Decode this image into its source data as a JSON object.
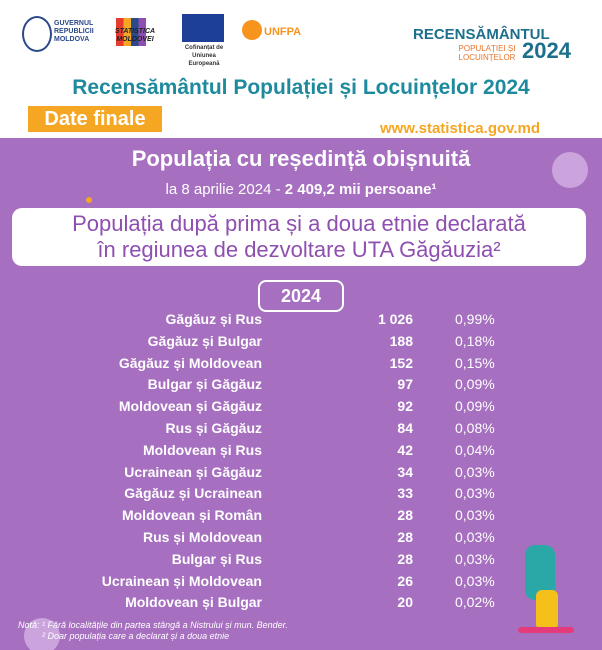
{
  "header": {
    "logos": [
      "GUVERNUL REPUBLICII MOLDOVA",
      "STATISTICA MOLDOVEI",
      "Cofinanțat de Uniunea Europeană",
      "UNFPA"
    ],
    "census_logo": {
      "title": "RECENSĂMÂNTUL",
      "subtitle": "POPULAȚIEI ȘI LOCUINȚELOR",
      "year": "2024"
    },
    "title": "Recensământul Populației și Locuințelor 2024",
    "badge": "Date finale",
    "website": "www.statistica.gov.md"
  },
  "intro": {
    "heading": "Populația cu reședință obișnuită",
    "date_text": "la 8 aprilie 2024 - ",
    "total_text": "2 409,2 mii persoane¹",
    "box_line1": "Populația după prima și a doua etnie declarată",
    "box_line2": "în regiunea de dezvoltare UTA Găgăuzia²"
  },
  "table": {
    "year": "2024",
    "rows": [
      [
        "Găgăuz și Rus",
        "1 026",
        "0,99%"
      ],
      [
        "Găgăuz și Bulgar",
        "188",
        "0,18%"
      ],
      [
        "Găgăuz și Moldovean",
        "152",
        "0,15%"
      ],
      [
        "Bulgar și Găgăuz",
        "97",
        "0,09%"
      ],
      [
        "Moldovean și Găgăuz",
        "92",
        "0,09%"
      ],
      [
        "Rus și Găgăuz",
        "84",
        "0,08%"
      ],
      [
        "Moldovean și Rus",
        "42",
        "0,04%"
      ],
      [
        "Ucrainean și Găgăuz",
        "34",
        "0,03%"
      ],
      [
        "Găgăuz și Ucrainean",
        "33",
        "0,03%"
      ],
      [
        "Moldovean și Român",
        "28",
        "0,03%"
      ],
      [
        "Rus și Moldovean",
        "28",
        "0,03%"
      ],
      [
        "Bulgar și Rus",
        "28",
        "0,03%"
      ],
      [
        "Ucrainean și Moldovean",
        "26",
        "0,03%"
      ],
      [
        "Moldovean și Bulgar",
        "20",
        "0,02%"
      ]
    ]
  },
  "notes": [
    "Notă: ¹ Fără localitățile din partea stângă a Nistrului și mun. Bender.",
    "² Doar populația care a declarat și a doua etnie"
  ]
}
